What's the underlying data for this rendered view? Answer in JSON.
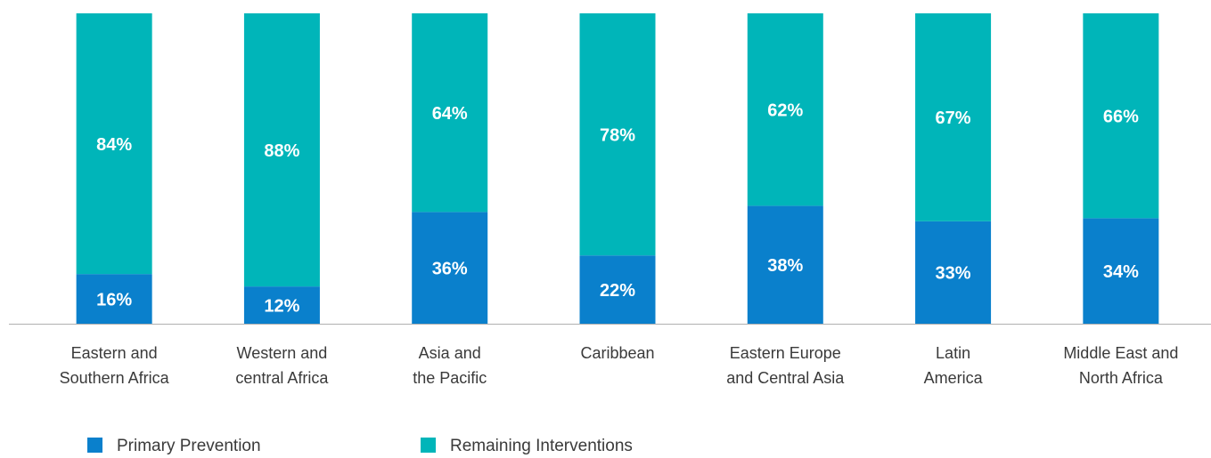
{
  "chart_data": {
    "type": "stacked_bar",
    "categories": [
      "Eastern and\nSouthern Africa",
      "Western and\ncentral Africa",
      "Asia and\nthe Pacific",
      "Caribbean",
      "Eastern Europe\nand Central Asia",
      "Latin\nAmerica",
      "Middle East and\nNorth Africa"
    ],
    "series": [
      {
        "name": "Primary Prevention",
        "color": "#0a80cc",
        "values": [
          16,
          12,
          36,
          22,
          38,
          33,
          34
        ],
        "value_labels": [
          "16%",
          "12%",
          "36%",
          "22%",
          "38%",
          "33%",
          "34%"
        ]
      },
      {
        "name": "Remaining Interventions",
        "color": "#00b5b9",
        "values": [
          84,
          88,
          64,
          78,
          62,
          67,
          66
        ],
        "value_labels": [
          "84%",
          "88%",
          "64%",
          "78%",
          "62%",
          "67%",
          "66%"
        ]
      }
    ],
    "ylim": [
      0,
      100
    ]
  }
}
